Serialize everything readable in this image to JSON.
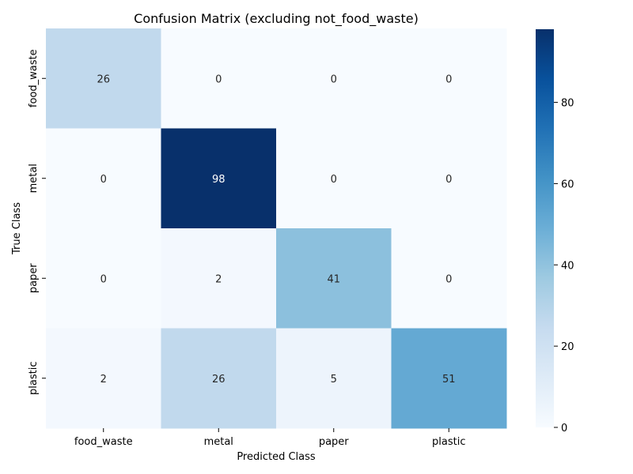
{
  "chart_data": {
    "type": "heatmap",
    "title": "Confusion Matrix (excluding not_food_waste)",
    "xlabel": "Predicted Class",
    "ylabel": "True Class",
    "x_categories": [
      "food_waste",
      "metal",
      "paper",
      "plastic"
    ],
    "y_categories": [
      "food_waste",
      "metal",
      "paper",
      "plastic"
    ],
    "values": [
      [
        26,
        0,
        0,
        0
      ],
      [
        0,
        98,
        0,
        0
      ],
      [
        0,
        2,
        41,
        0
      ],
      [
        2,
        26,
        5,
        51
      ]
    ],
    "colorscale": "Blues",
    "vmin": 0,
    "vmax": 98,
    "colorbar_ticks": [
      0,
      20,
      40,
      60,
      80
    ]
  }
}
